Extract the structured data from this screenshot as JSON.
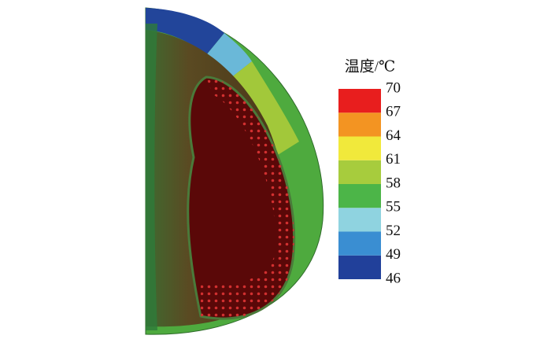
{
  "chart_data": {
    "type": "contour",
    "colorbar_title": "温度/℃",
    "zlim": [
      46,
      70
    ],
    "zticks": [
      46,
      49,
      52,
      55,
      58,
      61,
      64,
      67,
      70
    ],
    "colors": [
      "#21409a",
      "#3a8ed2",
      "#8fd3e0",
      "#4cb548",
      "#a7cc3d",
      "#f1e93b",
      "#f39422",
      "#e81e1e"
    ]
  }
}
